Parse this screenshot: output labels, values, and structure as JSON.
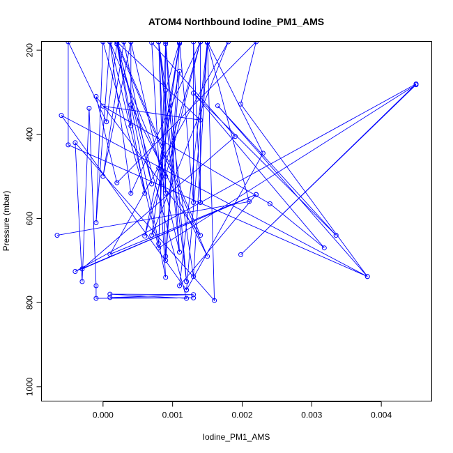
{
  "chart_data": {
    "type": "line",
    "title": "ATOM4 Northbound Iodine_PM1_AMS",
    "xlabel": "Iodine_PM1_AMS",
    "ylabel": "Pressure (mbar)",
    "xlim": [
      -0.00088,
      0.00473
    ],
    "ylim": [
      1035,
      180
    ],
    "y_reversed": true,
    "grid": false,
    "x_ticks": [
      0.0,
      0.001,
      0.002,
      0.003,
      0.004
    ],
    "x_tick_labels": [
      "0.000",
      "0.001",
      "0.002",
      "0.003",
      "0.004"
    ],
    "y_ticks": [
      200,
      400,
      600,
      800,
      1000
    ],
    "y_tick_labels": [
      "200",
      "400",
      "600",
      "800",
      "1000"
    ],
    "line_color": "#0000ff",
    "marker": "open-circle",
    "series": [
      {
        "points": [
          [
            -0.00066,
            640
          ],
          [
            0.0021,
            560
          ],
          [
            0.0015,
            182
          ],
          [
            0.0012,
            770
          ],
          [
            0.0023,
            445
          ],
          [
            0.0015,
            180
          ],
          [
            0.0011,
            760
          ],
          [
            0.0022,
            543
          ],
          [
            -0.0003,
            720
          ],
          [
            0.0019,
            405
          ],
          [
            0.0007,
            182
          ],
          [
            0.0009,
            740
          ],
          [
            0.0004,
            330
          ],
          [
            0.0015,
            690
          ],
          [
            0.0002,
            185
          ],
          [
            0.0012,
            790
          ],
          [
            0.0001,
            780
          ],
          [
            0.0013,
            781
          ],
          [
            0.0001,
            788
          ],
          [
            0.0013,
            789
          ],
          [
            -0.0001,
            790
          ],
          [
            -0.0001,
            760
          ],
          [
            -0.0002,
            338
          ],
          [
            -0.0003,
            750
          ],
          [
            -0.0004,
            420
          ],
          [
            0.0016,
            795
          ],
          [
            0.0015,
            180
          ],
          [
            0.0013,
            738
          ],
          [
            0.0008,
            180
          ],
          [
            0.0009,
            700
          ],
          [
            0.0011,
            250
          ],
          [
            0.0006,
            642
          ],
          [
            0.0014,
            180
          ],
          [
            0.0004,
            540
          ],
          [
            0.0001,
            180
          ],
          [
            0.0009,
            500
          ],
          [
            0.0014,
            180
          ],
          [
            0.0014,
            562
          ],
          [
            0.0013,
            180
          ],
          [
            0.0013,
            562
          ],
          [
            0.0011,
            180
          ],
          [
            0.0009,
            295
          ],
          [
            0.0008,
            660
          ],
          [
            0.0009,
            180
          ],
          [
            0.0012,
            750
          ],
          [
            0.0008,
            180
          ],
          [
            0.0011,
            680
          ],
          [
            0.0009,
            185
          ],
          [
            0.0009,
            540
          ],
          [
            0.0008,
            180
          ],
          [
            0.0009,
            690
          ],
          [
            0.0011,
            184
          ],
          [
            0.0008,
            480
          ],
          [
            0.0011,
            182
          ],
          [
            0.0007,
            640
          ],
          [
            0.0018,
            180
          ],
          [
            0.0001,
            685
          ],
          [
            0.0022,
            543
          ],
          [
            -0.0004,
            726
          ],
          [
            0.0045,
            280
          ],
          [
            0.00198,
            686
          ],
          [
            0.0045,
            282
          ],
          [
            0.0008,
            670
          ],
          [
            0.0001,
            180
          ],
          [
            -0.0001,
            610
          ],
          [
            0.0,
            180
          ],
          [
            0.0006,
            540
          ],
          [
            0.0002,
            180
          ],
          [
            0.0007,
            518
          ],
          [
            0.0003,
            180
          ],
          [
            0.0,
            500
          ],
          [
            0.0004,
            180
          ],
          [
            0.0011,
            680
          ],
          [
            0.0004,
            180
          ],
          [
            0.0004,
            380
          ],
          [
            0.0002,
            185
          ],
          [
            5e-05,
            370
          ],
          [
            -0.0005,
            180
          ],
          [
            -0.0005,
            425
          ],
          [
            0.0038,
            738
          ],
          [
            0.00165,
            332
          ],
          [
            0.00335,
            640
          ],
          [
            0.0013,
            302
          ],
          [
            0.00318,
            670
          ],
          [
            0.0024,
            565
          ],
          [
            0.0,
            333
          ],
          [
            0.0014,
            366
          ],
          [
            0.0002,
            180
          ],
          [
            0.0014,
            640
          ],
          [
            -0.0001,
            310
          ],
          [
            0.0002,
            515
          ],
          [
            0.0022,
            180
          ],
          [
            0.00198,
            328
          ],
          [
            0.0038,
            738
          ],
          [
            -0.0006,
            355
          ],
          [
            0.0012,
            770
          ]
        ]
      }
    ]
  }
}
